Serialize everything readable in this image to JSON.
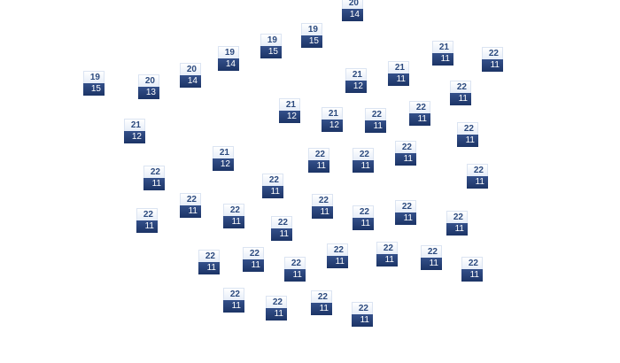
{
  "tiles": [
    {
      "top": "20",
      "bottom": "14"
    },
    {
      "top": "19",
      "bottom": "15"
    },
    {
      "top": "19",
      "bottom": "15"
    },
    {
      "top": "19",
      "bottom": "14"
    },
    {
      "top": "20",
      "bottom": "14"
    },
    {
      "top": "19",
      "bottom": "15"
    },
    {
      "top": "20",
      "bottom": "13"
    },
    {
      "top": "21",
      "bottom": "11"
    },
    {
      "top": "22",
      "bottom": "11"
    },
    {
      "top": "21",
      "bottom": "12"
    },
    {
      "top": "21",
      "bottom": "11"
    },
    {
      "top": "22",
      "bottom": "11"
    },
    {
      "top": "21",
      "bottom": "12"
    },
    {
      "top": "21",
      "bottom": "12"
    },
    {
      "top": "22",
      "bottom": "11"
    },
    {
      "top": "22",
      "bottom": "11"
    },
    {
      "top": "21",
      "bottom": "12"
    },
    {
      "top": "22",
      "bottom": "11"
    },
    {
      "top": "21",
      "bottom": "12"
    },
    {
      "top": "22",
      "bottom": "11"
    },
    {
      "top": "22",
      "bottom": "11"
    },
    {
      "top": "22",
      "bottom": "11"
    },
    {
      "top": "22",
      "bottom": "11"
    },
    {
      "top": "22",
      "bottom": "11"
    },
    {
      "top": "22",
      "bottom": "11"
    },
    {
      "top": "22",
      "bottom": "11"
    },
    {
      "top": "22",
      "bottom": "11"
    },
    {
      "top": "22",
      "bottom": "11"
    },
    {
      "top": "22",
      "bottom": "11"
    },
    {
      "top": "22",
      "bottom": "11"
    },
    {
      "top": "22",
      "bottom": "11"
    },
    {
      "top": "22",
      "bottom": "11"
    },
    {
      "top": "22",
      "bottom": "11"
    },
    {
      "top": "22",
      "bottom": "11"
    },
    {
      "top": "22",
      "bottom": "11"
    },
    {
      "top": "22",
      "bottom": "11"
    },
    {
      "top": "22",
      "bottom": "11"
    },
    {
      "top": "22",
      "bottom": "11"
    },
    {
      "top": "22",
      "bottom": "11"
    },
    {
      "top": "22",
      "bottom": "11"
    },
    {
      "top": "22",
      "bottom": "11"
    },
    {
      "top": "22",
      "bottom": "11"
    },
    {
      "top": "22",
      "bottom": "11"
    },
    {
      "top": "22",
      "bottom": "11"
    }
  ]
}
